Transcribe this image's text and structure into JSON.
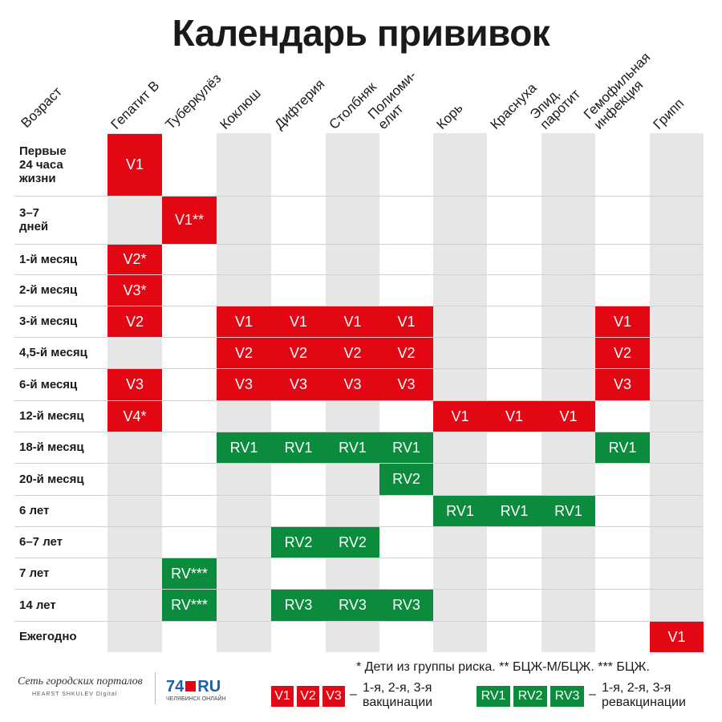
{
  "title": "Календарь прививок",
  "age_header": "Возраст",
  "columns": [
    [
      "Гепатит В"
    ],
    [
      "Туберкулёз"
    ],
    [
      "Коклюш"
    ],
    [
      "Дифтерия"
    ],
    [
      "Столбняк"
    ],
    [
      "Полиоми-",
      "елит"
    ],
    [
      "Корь"
    ],
    [
      "Краснуха"
    ],
    [
      "Эпид.",
      "паротит"
    ],
    [
      "Гемофильная",
      "инфекция"
    ],
    [
      "Грипп"
    ]
  ],
  "rows": [
    {
      "label": [
        "Первые",
        "24 часа",
        "жизни"
      ],
      "cells": [
        [
          "V1",
          "r"
        ],
        null,
        null,
        null,
        null,
        null,
        null,
        null,
        null,
        null,
        null
      ]
    },
    {
      "label": [
        "3–7",
        "дней"
      ],
      "cells": [
        null,
        [
          "V1**",
          "r"
        ],
        null,
        null,
        null,
        null,
        null,
        null,
        null,
        null,
        null
      ]
    },
    {
      "label": [
        "1-й месяц"
      ],
      "cells": [
        [
          "V2*",
          "r"
        ],
        null,
        null,
        null,
        null,
        null,
        null,
        null,
        null,
        null,
        null
      ]
    },
    {
      "label": [
        "2-й месяц"
      ],
      "cells": [
        [
          "V3*",
          "r"
        ],
        null,
        null,
        null,
        null,
        null,
        null,
        null,
        null,
        null,
        null
      ]
    },
    {
      "label": [
        "3-й месяц"
      ],
      "cells": [
        [
          "V2",
          "r"
        ],
        null,
        [
          "V1",
          "r"
        ],
        [
          "V1",
          "r"
        ],
        [
          "V1",
          "r"
        ],
        [
          "V1",
          "r"
        ],
        null,
        null,
        null,
        [
          "V1",
          "r"
        ],
        null
      ]
    },
    {
      "label": [
        "4,5-й месяц"
      ],
      "cells": [
        null,
        null,
        [
          "V2",
          "r"
        ],
        [
          "V2",
          "r"
        ],
        [
          "V2",
          "r"
        ],
        [
          "V2",
          "r"
        ],
        null,
        null,
        null,
        [
          "V2",
          "r"
        ],
        null
      ]
    },
    {
      "label": [
        "6-й месяц"
      ],
      "cells": [
        [
          "V3",
          "r"
        ],
        null,
        [
          "V3",
          "r"
        ],
        [
          "V3",
          "r"
        ],
        [
          "V3",
          "r"
        ],
        [
          "V3",
          "r"
        ],
        null,
        null,
        null,
        [
          "V3",
          "r"
        ],
        null
      ]
    },
    {
      "label": [
        "12-й месяц"
      ],
      "cells": [
        [
          "V4*",
          "r"
        ],
        null,
        null,
        null,
        null,
        null,
        [
          "V1",
          "r"
        ],
        [
          "V1",
          "r"
        ],
        [
          "V1",
          "r"
        ],
        null,
        null
      ]
    },
    {
      "label": [
        "18-й месяц"
      ],
      "cells": [
        null,
        null,
        [
          "RV1",
          "g"
        ],
        [
          "RV1",
          "g"
        ],
        [
          "RV1",
          "g"
        ],
        [
          "RV1",
          "g"
        ],
        null,
        null,
        null,
        [
          "RV1",
          "g"
        ],
        null
      ]
    },
    {
      "label": [
        "20-й месяц"
      ],
      "cells": [
        null,
        null,
        null,
        null,
        null,
        [
          "RV2",
          "g"
        ],
        null,
        null,
        null,
        null,
        null
      ]
    },
    {
      "label": [
        "6 лет"
      ],
      "cells": [
        null,
        null,
        null,
        null,
        null,
        null,
        [
          "RV1",
          "g"
        ],
        [
          "RV1",
          "g"
        ],
        [
          "RV1",
          "g"
        ],
        null,
        null
      ]
    },
    {
      "label": [
        "6–7 лет"
      ],
      "cells": [
        null,
        null,
        null,
        [
          "RV2",
          "g"
        ],
        [
          "RV2",
          "g"
        ],
        null,
        null,
        null,
        null,
        null,
        null
      ]
    },
    {
      "label": [
        "7 лет"
      ],
      "cells": [
        null,
        [
          "RV***",
          "g"
        ],
        null,
        null,
        null,
        null,
        null,
        null,
        null,
        null,
        null
      ]
    },
    {
      "label": [
        "14 лет"
      ],
      "cells": [
        null,
        [
          "RV***",
          "g"
        ],
        null,
        [
          "RV3",
          "g"
        ],
        [
          "RV3",
          "g"
        ],
        [
          "RV3",
          "g"
        ],
        null,
        null,
        null,
        null,
        null
      ]
    },
    {
      "label": [
        "Ежегодно"
      ],
      "cells": [
        null,
        null,
        null,
        null,
        null,
        null,
        null,
        null,
        null,
        null,
        [
          "V1",
          "r"
        ]
      ]
    }
  ],
  "footnote": "* Дети из группы риска. ** БЦЖ-М/БЦЖ. *** БЦЖ.",
  "legend": {
    "vaccination": {
      "labels": [
        "V1",
        "V2",
        "V3"
      ],
      "dash": "–",
      "text": [
        "1-я, 2-я, 3-я",
        "вакцинации"
      ]
    },
    "revaccination": {
      "labels": [
        "RV1",
        "RV2",
        "RV3"
      ],
      "dash": "–",
      "text": [
        "1-я, 2-я, 3-я",
        "ревакцинации"
      ]
    }
  },
  "colors": {
    "vaccination": "#e30613",
    "revaccination": "#0b8c3c",
    "shade": "#e6e6e6"
  },
  "logos": {
    "network": "Сеть городских порталов",
    "network_sub": "HEARST SHKULEV Digital",
    "site_number": "74",
    "site_suffix": "RU",
    "site_sub": "ЧЕЛЯБИНСК ОНЛАЙН"
  }
}
